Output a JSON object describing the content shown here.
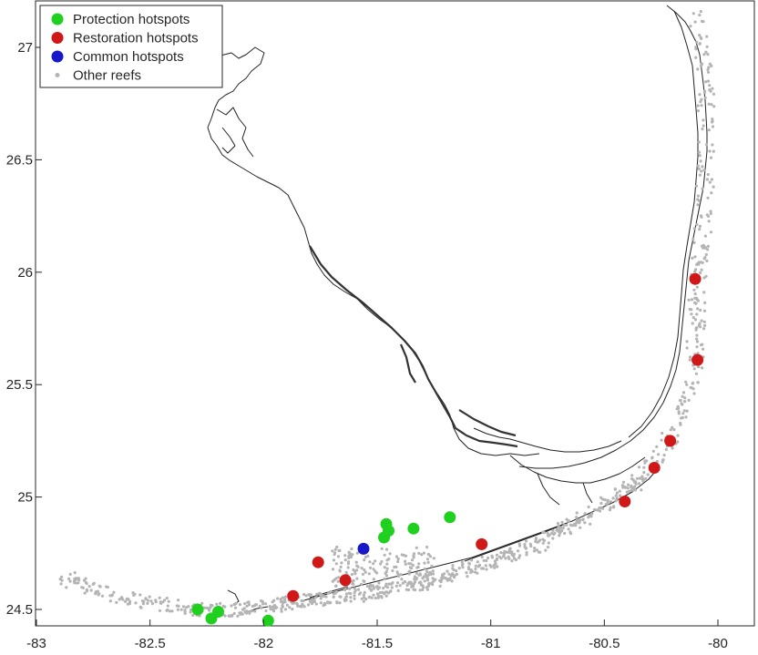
{
  "chart_data": {
    "type": "scatter",
    "xlim": [
      -83,
      -79.8
    ],
    "ylim": [
      24.4,
      27.2
    ],
    "x_ticks": [
      "-83",
      "-82.5",
      "-82",
      "-81.5",
      "-81",
      "-80.5",
      "-80"
    ],
    "y_ticks": [
      "24.5",
      "25",
      "25.5",
      "26",
      "26.5",
      "27"
    ],
    "legend": {
      "placement": "top-left",
      "entries": [
        {
          "label": "Protection hotspots",
          "color": "#1fd01f",
          "marker": "large-dot"
        },
        {
          "label": "Restoration hotspots",
          "color": "#d01818",
          "marker": "large-dot"
        },
        {
          "label": "Common hotspots",
          "color": "#1818c8",
          "marker": "large-dot"
        },
        {
          "label": "Other reefs",
          "color": "#b4b4b4",
          "marker": "small-dot"
        }
      ]
    },
    "series": [
      {
        "name": "Protection hotspots",
        "color": "#1fd01f",
        "points": [
          [
            -82.29,
            24.5
          ],
          [
            -82.23,
            24.46
          ],
          [
            -82.2,
            24.49
          ],
          [
            -81.98,
            24.45
          ],
          [
            -81.47,
            24.82
          ],
          [
            -81.46,
            24.88
          ],
          [
            -81.45,
            24.85
          ],
          [
            -81.34,
            24.86
          ],
          [
            -81.18,
            24.91
          ]
        ]
      },
      {
        "name": "Restoration hotspots",
        "color": "#d01818",
        "points": [
          [
            -81.87,
            24.56
          ],
          [
            -81.76,
            24.71
          ],
          [
            -81.64,
            24.63
          ],
          [
            -81.04,
            24.79
          ],
          [
            -80.41,
            24.98
          ],
          [
            -80.28,
            25.13
          ],
          [
            -80.21,
            25.25
          ],
          [
            -80.09,
            25.61
          ],
          [
            -80.1,
            25.97
          ]
        ]
      },
      {
        "name": "Common hotspots",
        "color": "#1818c8",
        "points": [
          [
            -81.56,
            24.77
          ]
        ]
      }
    ]
  }
}
